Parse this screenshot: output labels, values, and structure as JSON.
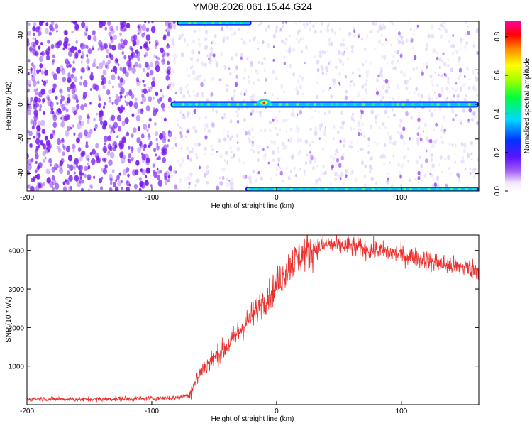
{
  "title": "YM08.2026.061.15.44.G24",
  "colors": {
    "line": "#e8312e",
    "dense": "#7a1cf0",
    "faint": "#d9c8f7"
  },
  "chart_data": [
    {
      "type": "heatmap",
      "title": "YM08.2026.061.15.44.G24",
      "xlabel": "Height of straight line (km)",
      "ylabel": "Frequency (Hz)",
      "xlim": [
        -200,
        162
      ],
      "ylim": [
        -50,
        48
      ],
      "xticks": [
        -200,
        -100,
        0,
        100
      ],
      "yticks": [
        -40,
        -20,
        0,
        20,
        40
      ],
      "colorbar": {
        "label": "Normalized spectral amplitude",
        "range": [
          0,
          0.88
        ],
        "ticks": [
          0.0,
          0.2,
          0.4,
          0.6,
          0.8
        ],
        "tick_labels": [
          "0.0",
          "0.2",
          "0.4",
          "0.6",
          "0.8"
        ]
      },
      "features": [
        {
          "name": "dc-streak",
          "frequency_hz": 0,
          "x_range": [
            -85,
            162
          ],
          "amplitude": 0.5
        },
        {
          "name": "upper-edge-streak",
          "frequency_hz": 47,
          "x_range": [
            -80,
            -20
          ],
          "amplitude": 0.4
        },
        {
          "name": "lower-edge-streak",
          "frequency_hz": -49,
          "x_range": [
            -25,
            162
          ],
          "amplitude": 0.35
        }
      ]
    },
    {
      "type": "line",
      "xlabel": "Height of straight line (km)",
      "ylabel": "SNR (10 * v/v)",
      "xlim": [
        -200,
        162
      ],
      "ylim": [
        0,
        4400
      ],
      "xticks": [
        -200,
        -100,
        0,
        100
      ],
      "yticks": [
        1000,
        2000,
        3000,
        4000
      ],
      "series": [
        {
          "name": "SNR",
          "x": [
            -200,
            -150,
            -100,
            -80,
            -70,
            -65,
            -60,
            -50,
            -40,
            -30,
            -20,
            -10,
            0,
            10,
            20,
            30,
            40,
            60,
            80,
            100,
            120,
            140,
            162
          ],
          "y": [
            150,
            140,
            160,
            180,
            250,
            600,
            900,
            1200,
            1500,
            1900,
            2300,
            2700,
            3100,
            3600,
            3900,
            4050,
            4150,
            4100,
            4000,
            3900,
            3750,
            3600,
            3500
          ]
        }
      ]
    }
  ]
}
